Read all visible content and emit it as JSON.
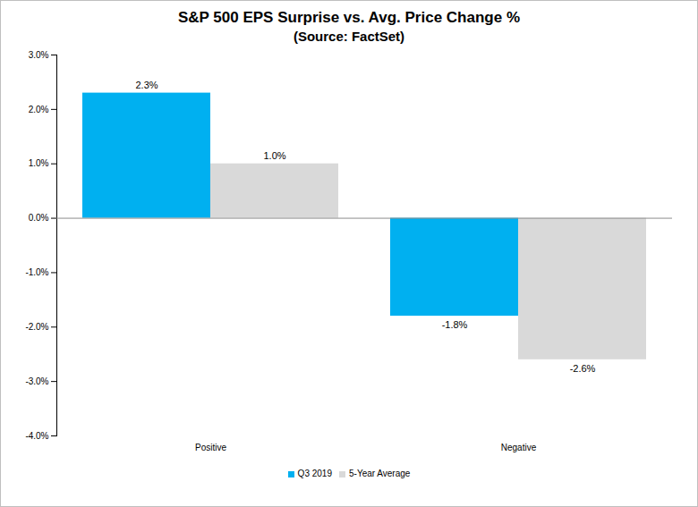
{
  "chart_data": {
    "type": "bar",
    "title": "S&P 500 EPS Surprise vs. Avg. Price Change %",
    "subtitle": "(Source: FactSet)",
    "categories": [
      "Positive",
      "Negative"
    ],
    "series": [
      {
        "name": "Q3 2019",
        "color": "#00b0f0",
        "values": [
          2.3,
          -1.8
        ],
        "value_labels": [
          "2.3%",
          "-1.8%"
        ]
      },
      {
        "name": "5-Year Average",
        "color": "#d9d9d9",
        "values": [
          1.0,
          -2.6
        ],
        "value_labels": [
          "1.0%",
          "-2.6%"
        ]
      }
    ],
    "ylim": [
      -4,
      3
    ],
    "yticks": [
      {
        "value": -4,
        "label": "-4.0%"
      },
      {
        "value": -3,
        "label": "-3.0%"
      },
      {
        "value": -2,
        "label": "-2.0%"
      },
      {
        "value": -1,
        "label": "-1.0%"
      },
      {
        "value": 0,
        "label": "0.0%"
      },
      {
        "value": 1,
        "label": "1.0%"
      },
      {
        "value": 2,
        "label": "2.0%"
      },
      {
        "value": 3,
        "label": "3.0%"
      }
    ],
    "grid": false,
    "legend": "bottom",
    "data_labels": true
  }
}
